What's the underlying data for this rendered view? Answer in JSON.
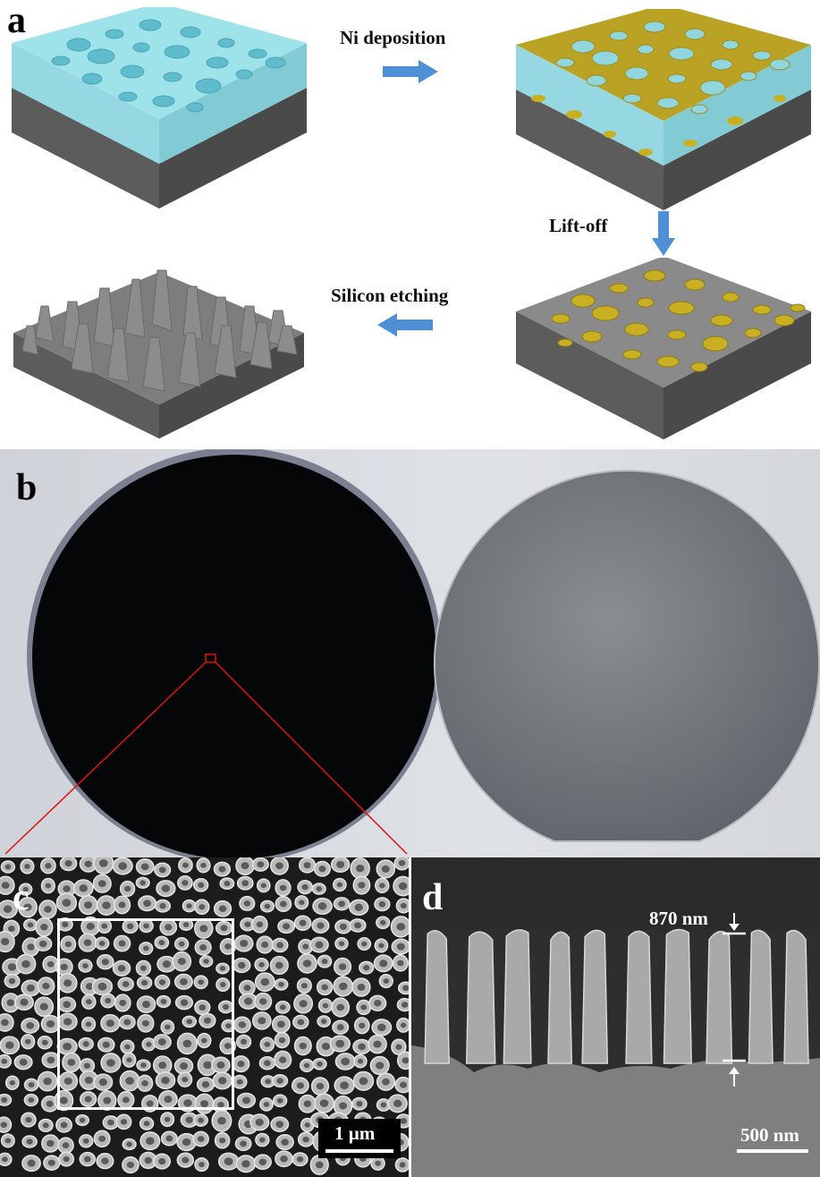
{
  "panels": {
    "a": {
      "letter": "a"
    },
    "b": {
      "letter": "b"
    },
    "c": {
      "letter": "c",
      "scalebar": "1 µm"
    },
    "d": {
      "letter": "d",
      "scalebar": "500 nm",
      "depth_label": "870 nm"
    }
  },
  "steps": {
    "ni_deposition": "Ni deposition",
    "lift_off": "Lift-off",
    "silicon_etching": "Silicon etching"
  },
  "colors": {
    "photoresist": "#6fd0dc",
    "nickel": "#c9b023",
    "silicon": "#7b7b7b",
    "arrow": "#4f8fd6",
    "zoom_lines": "#e01010"
  }
}
